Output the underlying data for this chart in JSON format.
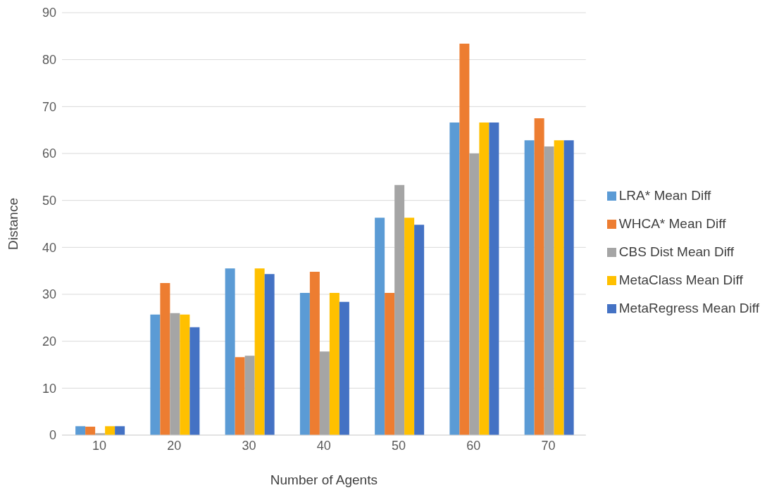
{
  "chart_data": {
    "type": "bar",
    "xlabel": "Number of Agents",
    "ylabel": "Distance",
    "categories": [
      "10",
      "20",
      "30",
      "40",
      "50",
      "60",
      "70"
    ],
    "series": [
      {
        "name": "LRA* Mean Diff",
        "color": "#5b9bd5",
        "values": [
          1.9,
          25.7,
          35.5,
          30.3,
          46.3,
          66.6,
          62.8
        ]
      },
      {
        "name": "WHCA* Mean Diff",
        "color": "#ed7d31",
        "values": [
          1.8,
          32.4,
          16.6,
          34.8,
          30.3,
          83.4,
          67.5
        ]
      },
      {
        "name": "CBS Dist Mean Diff",
        "color": "#a5a5a5",
        "values": [
          0.4,
          26.0,
          16.9,
          17.8,
          53.3,
          60.0,
          61.5
        ]
      },
      {
        "name": "MetaClass Mean Diff",
        "color": "#ffc000",
        "values": [
          1.9,
          25.7,
          35.5,
          30.3,
          46.3,
          66.6,
          62.8
        ]
      },
      {
        "name": "MetaRegress Mean Diff",
        "color": "#4472c4",
        "values": [
          1.9,
          23.0,
          34.3,
          28.4,
          44.8,
          66.6,
          62.8
        ]
      }
    ],
    "ylim": [
      0,
      90
    ],
    "yticks": [
      0,
      10,
      20,
      30,
      40,
      50,
      60,
      70,
      80,
      90
    ],
    "grid": "y",
    "legend": "right"
  }
}
